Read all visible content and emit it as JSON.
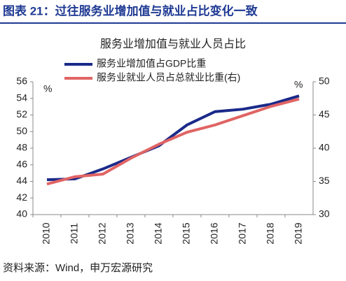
{
  "header": "图表 21：过往服务业增加值与就业占比变化一致",
  "source": "资料来源：Wind，申万宏源研究",
  "chart_data": {
    "type": "line",
    "title": "服务业增加值与就业人员占比",
    "categories": [
      "2010",
      "2011",
      "2012",
      "2013",
      "2014",
      "2015",
      "2016",
      "2017",
      "2018",
      "2019"
    ],
    "series": [
      {
        "name": "服务业增加值占GDP比重",
        "color": "#1a2a8a",
        "values": [
          44.2,
          44.3,
          45.5,
          46.9,
          48.3,
          50.8,
          52.4,
          52.7,
          53.3,
          54.3
        ]
      },
      {
        "name": "服务业就业人员占总就业比重(右)",
        "color": "#e06464",
        "axis": "y2",
        "values": [
          34.6,
          35.7,
          36.1,
          38.5,
          40.6,
          42.4,
          43.5,
          44.9,
          46.3,
          47.4
        ]
      }
    ],
    "y_label": "%",
    "y2_label": "%",
    "ylim": [
      40,
      56
    ],
    "yticks": [
      40,
      42,
      44,
      46,
      48,
      50,
      52,
      54,
      56
    ],
    "y2lim": [
      30,
      50
    ],
    "y2ticks": [
      30,
      35,
      40,
      45,
      50
    ]
  }
}
